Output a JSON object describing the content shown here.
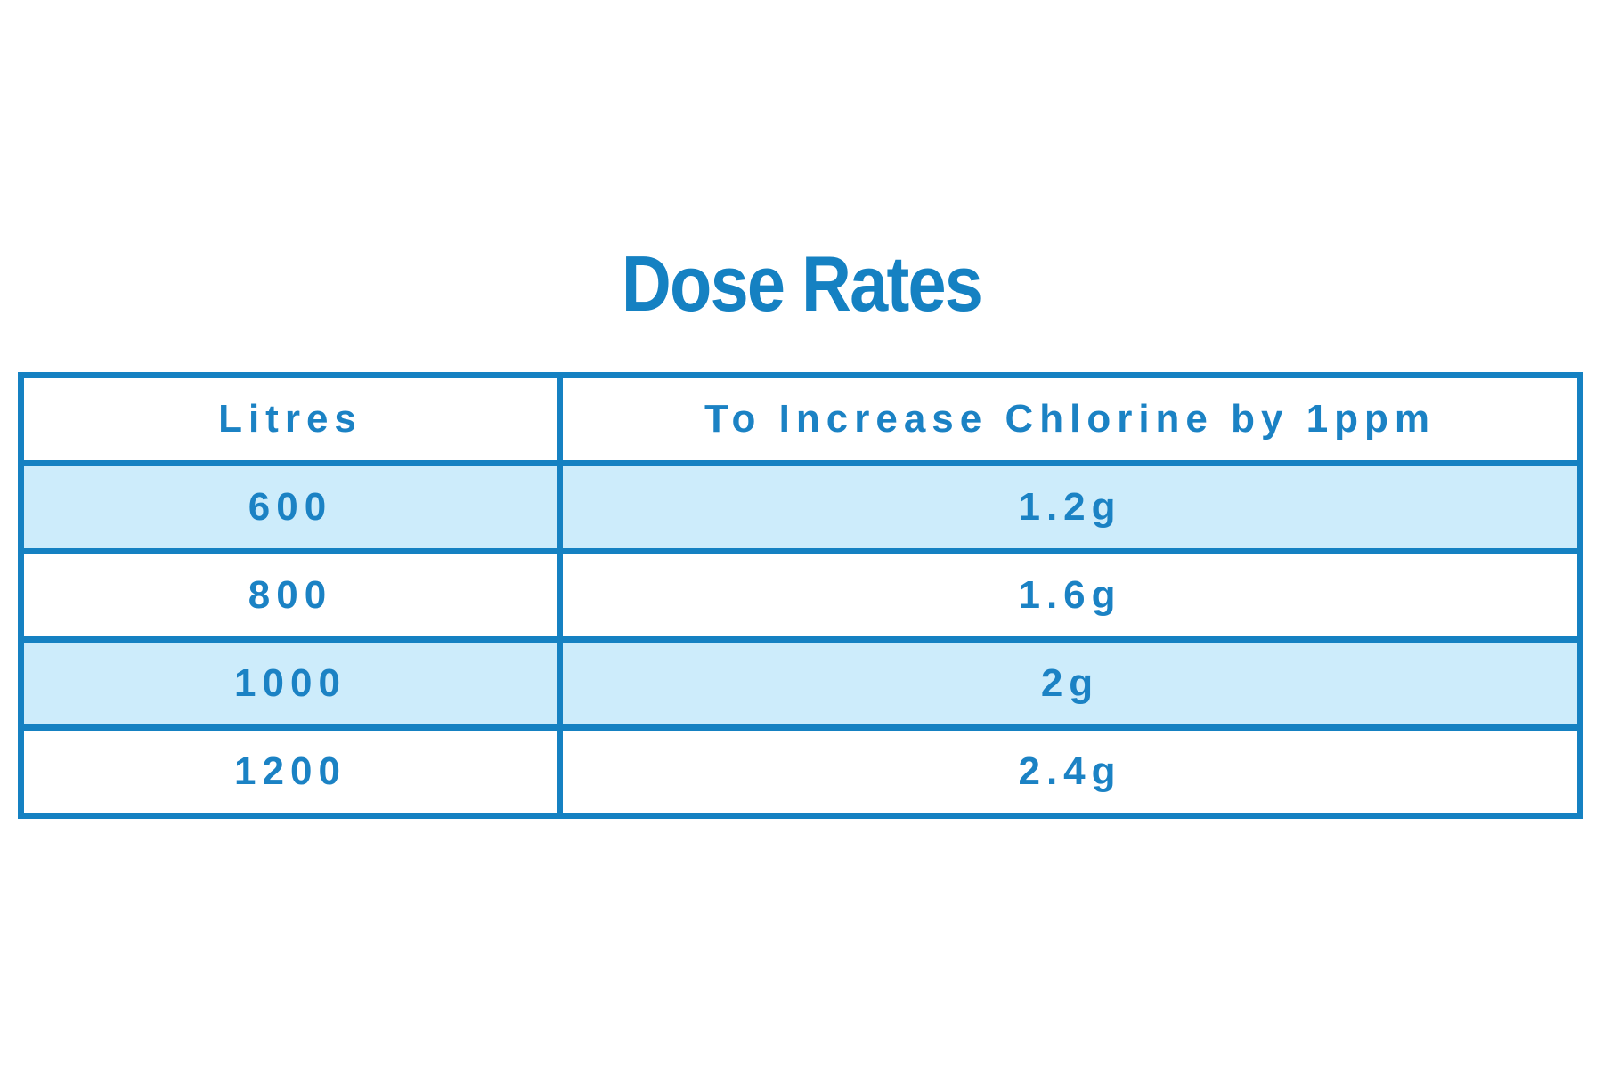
{
  "title": "Dose Rates",
  "colors": {
    "accent": "#1581c2",
    "text_blue": "#1b82c4",
    "row_light": "#cdecfb",
    "row_white": "#ffffff"
  },
  "table": {
    "headers": [
      "Litres",
      "To Increase Chlorine by 1ppm"
    ],
    "rows": [
      [
        "600",
        "1.2g"
      ],
      [
        "800",
        "1.6g"
      ],
      [
        "1000",
        "2g"
      ],
      [
        "1200",
        "2.4g"
      ]
    ]
  },
  "chart_data": {
    "type": "table",
    "title": "Dose Rates",
    "columns": [
      "Litres",
      "To Increase Chlorine by 1ppm"
    ],
    "rows": [
      [
        "600",
        "1.2g"
      ],
      [
        "800",
        "1.6g"
      ],
      [
        "1000",
        "2g"
      ],
      [
        "1200",
        "2.4g"
      ]
    ]
  }
}
